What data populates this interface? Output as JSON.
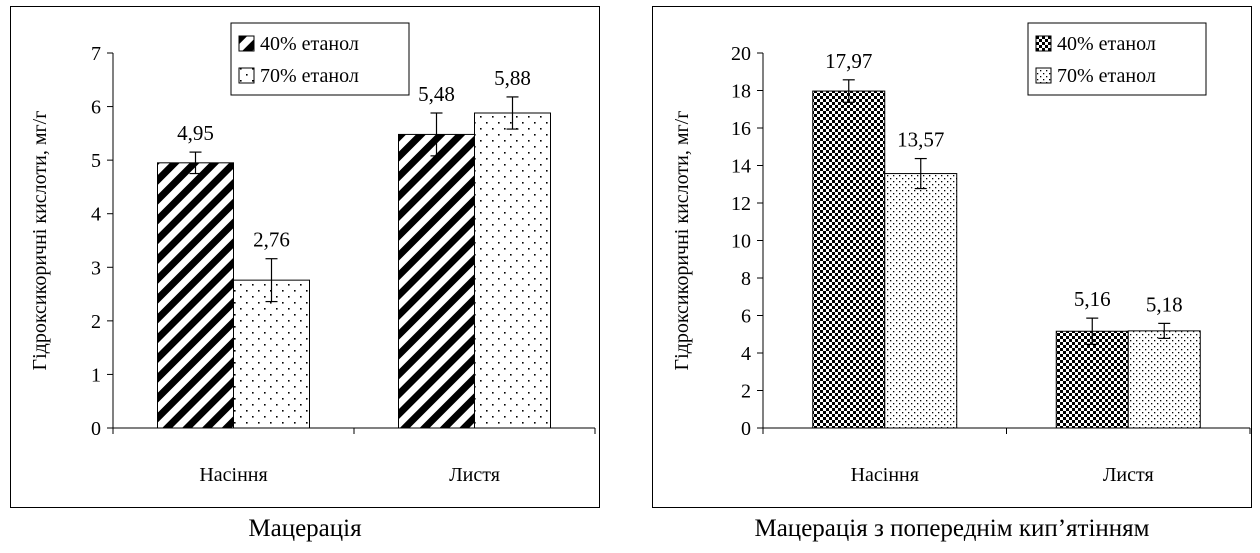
{
  "chart_data": [
    {
      "type": "bar",
      "categories": [
        "Насіння",
        "Листя"
      ],
      "series": [
        {
          "name": "40% етанол",
          "values": [
            4.95,
            5.48
          ],
          "errors": [
            0.2,
            0.4
          ],
          "labels": [
            "4,95",
            "5,48"
          ]
        },
        {
          "name": "70% етанол",
          "values": [
            2.76,
            5.88
          ],
          "errors": [
            0.4,
            0.3
          ],
          "labels": [
            "2,76",
            "5,88"
          ]
        }
      ],
      "ylabel": "Гідроксикоричні кислоти, мг/г",
      "ylim": [
        0,
        7
      ],
      "yticks": [
        "0",
        "1",
        "2",
        "3",
        "4",
        "5",
        "6",
        "7"
      ],
      "legend": "top-center",
      "pattern": "hatch",
      "caption": "Мацерація"
    },
    {
      "type": "bar",
      "categories": [
        "Насіння",
        "Листя"
      ],
      "series": [
        {
          "name": "40% етанол",
          "values": [
            17.97,
            5.16
          ],
          "errors": [
            0.6,
            0.7
          ],
          "labels": [
            "17,97",
            "5,16"
          ]
        },
        {
          "name": "70% етанол",
          "values": [
            13.57,
            5.18
          ],
          "errors": [
            0.8,
            0.4
          ],
          "labels": [
            "13,57",
            "5,18"
          ]
        }
      ],
      "ylabel": "Гідроксикоричні кислоти, мг/г",
      "ylim": [
        0,
        20
      ],
      "yticks": [
        "0",
        "2",
        "4",
        "6",
        "8",
        "10",
        "12",
        "14",
        "16",
        "18",
        "20"
      ],
      "legend": "top-right",
      "pattern": "checker",
      "caption": "Мацерація з попереднім кип’ятінням"
    }
  ]
}
